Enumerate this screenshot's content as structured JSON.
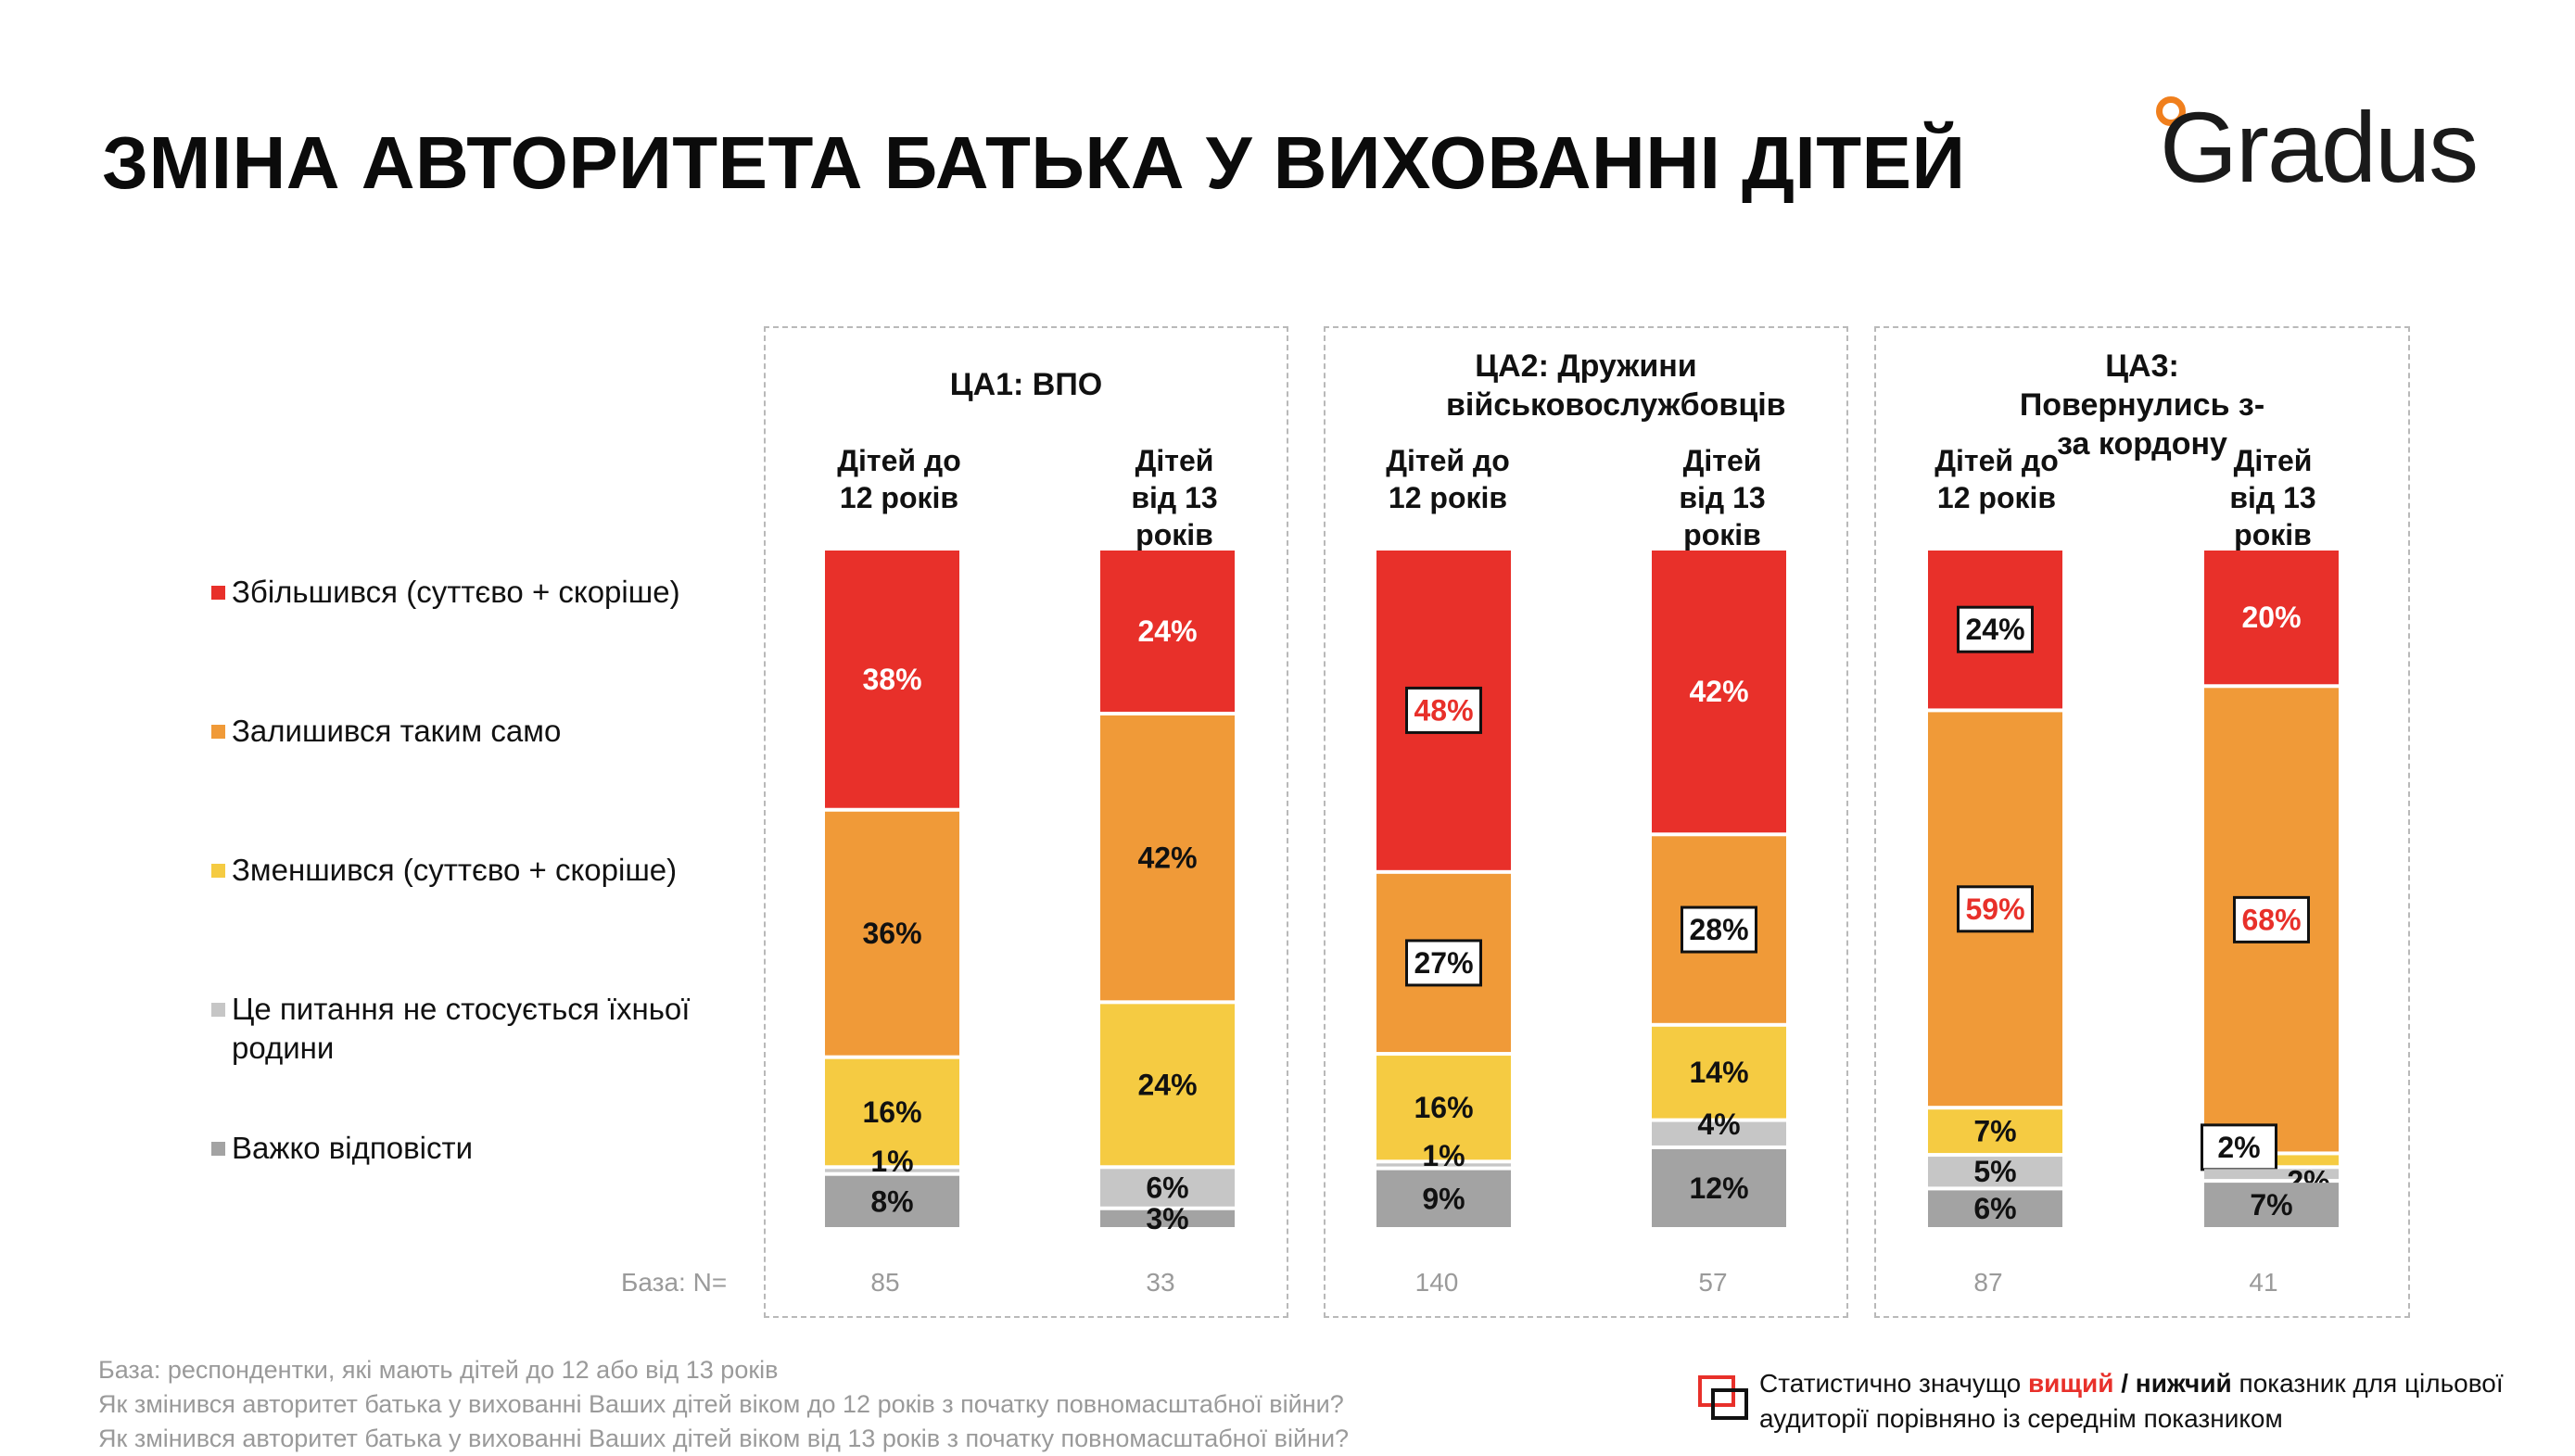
{
  "title": "ЗМІНА АВТОРИТЕТА БАТЬКА У ВИХОВАННІ ДІТЕЙ",
  "logo_text": "Gradus",
  "colors": {
    "increased": "#e8302a",
    "same": "#f09a38",
    "decreased": "#f5cb42",
    "not_applicable": "#c6c6c6",
    "hard_to_say": "#a3a3a3",
    "accent": "#f07f1d"
  },
  "legend": [
    {
      "key": "increased",
      "label": "Збільшився (суттєво + скоріше)"
    },
    {
      "key": "same",
      "label": "Залишився таким само"
    },
    {
      "key": "decreased",
      "label": "Зменшився (суттєво + скоріше)"
    },
    {
      "key": "not_applicable",
      "label": "Це питання не стосується їхньої родини"
    },
    {
      "key": "hard_to_say",
      "label": "Важко відповісти"
    }
  ],
  "base_label": "База: N=",
  "chart_data": {
    "type": "bar",
    "stacked": true,
    "panels": [
      {
        "title": "ЦА1: ВПО",
        "columns": [
          {
            "label": "Дітей до 12 років",
            "base": "85",
            "values": [
              38,
              36,
              16,
              1,
              8
            ],
            "boxed": [
              false,
              false,
              false,
              false,
              false
            ],
            "color_hi": [
              false,
              false,
              false,
              false,
              false
            ]
          },
          {
            "label": "Дітей від 13 років",
            "base": "33",
            "values": [
              24,
              42,
              24,
              6,
              3
            ],
            "boxed": [
              false,
              false,
              false,
              false,
              false
            ],
            "color_hi": [
              false,
              false,
              false,
              false,
              false
            ]
          }
        ]
      },
      {
        "title": "ЦА2: Дружини військовослужбовців",
        "columns": [
          {
            "label": "Дітей до 12 років",
            "base": "140",
            "values": [
              48,
              27,
              16,
              1,
              9
            ],
            "boxed": [
              true,
              true,
              false,
              false,
              false
            ],
            "color_hi": [
              true,
              false,
              false,
              false,
              false
            ]
          },
          {
            "label": "Дітей від 13 років",
            "base": "57",
            "values": [
              42,
              28,
              14,
              4,
              12
            ],
            "boxed": [
              false,
              true,
              false,
              false,
              false
            ],
            "color_hi": [
              false,
              false,
              false,
              false,
              false
            ]
          }
        ]
      },
      {
        "title": "ЦА3: Повернулись з-за кордону",
        "columns": [
          {
            "label": "Дітей до 12 років",
            "base": "87",
            "values": [
              24,
              59,
              7,
              5,
              6
            ],
            "boxed": [
              true,
              true,
              false,
              false,
              false
            ],
            "color_hi": [
              false,
              true,
              false,
              false,
              false
            ]
          },
          {
            "label": "Дітей від 13 років",
            "base": "41",
            "values": [
              20,
              68,
              2,
              2,
              7
            ],
            "boxed": [
              false,
              true,
              true,
              false,
              false
            ],
            "color_hi": [
              false,
              true,
              false,
              false,
              false
            ]
          }
        ]
      }
    ]
  },
  "footnotes": [
    "База: респондентки, які мають дітей до 12 або від 13 років",
    "Як змінився авторитет батька у вихованні Ваших дітей віком до 12 років з початку повномасштабної війни?",
    "Як змінився авторитет батька у вихованні Ваших дітей віком від 13 років з початку повномасштабної війни?"
  ],
  "significance_note": {
    "before": "Статистично значущо ",
    "higher": "вищий",
    "sep": " / ",
    "lower": "нижчий",
    "after": " показник для цільової аудиторії порівняно із середнім показником"
  }
}
